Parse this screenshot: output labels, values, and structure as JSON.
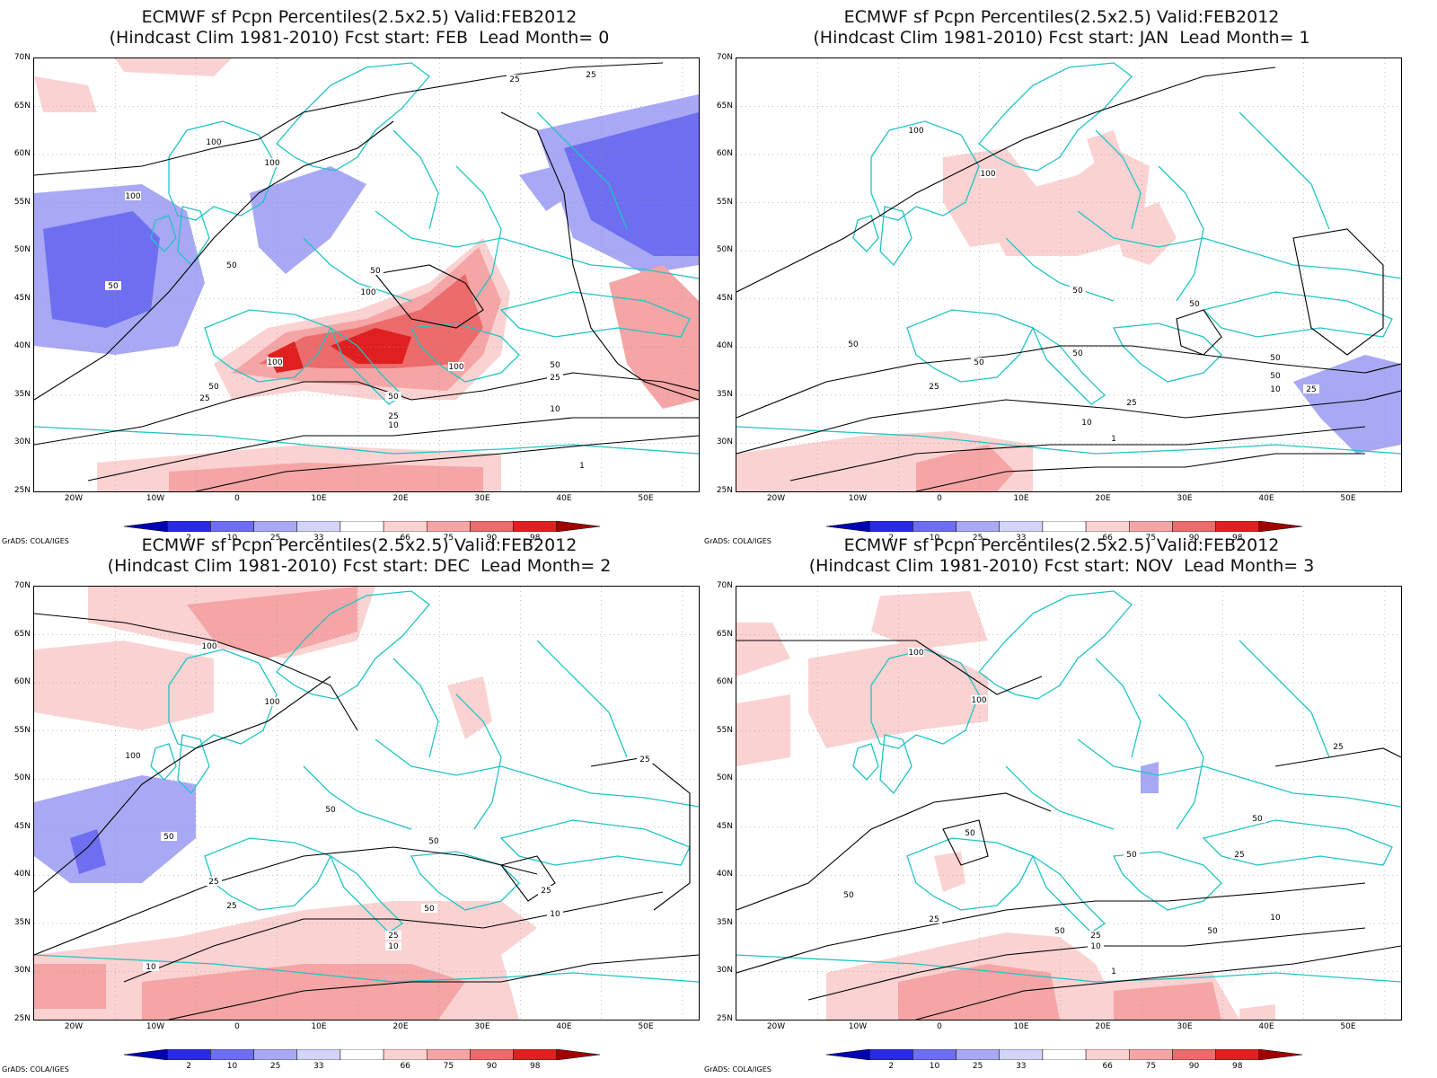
{
  "panels": [
    {
      "title1": "ECMWF sf Pcpn Percentiles(2.5x2.5) Valid:FEB2012",
      "title2": "(Hindcast Clim 1981-2010) Fcst start: FEB  Lead Month= 0",
      "contour_labels": [
        "25",
        "25",
        "100",
        "100",
        "100",
        "50",
        "50",
        "50",
        "100",
        "100",
        "100",
        "50",
        "25",
        "50",
        "25",
        "10",
        "50",
        "25",
        "10",
        "1"
      ]
    },
    {
      "title1": "ECMWF sf Pcpn Percentiles(2.5x2.5) Valid:FEB2012",
      "title2": "(Hindcast Clim 1981-2010) Fcst start: JAN  Lead Month= 1",
      "contour_labels": [
        "100",
        "100",
        "50",
        "50",
        "50",
        "50",
        "50",
        "50",
        "25",
        "25",
        "10",
        "1",
        "50",
        "10",
        "25"
      ]
    },
    {
      "title1": "ECMWF sf Pcpn Percentiles(2.5x2.5) Valid:FEB2012",
      "title2": "(Hindcast Clim 1981-2010) Fcst start: DEC  Lead Month= 2",
      "contour_labels": [
        "100",
        "100",
        "100",
        "25",
        "50",
        "50",
        "50",
        "25",
        "25",
        "50",
        "25",
        "10",
        "25",
        "10",
        "10"
      ]
    },
    {
      "title1": "ECMWF sf Pcpn Percentiles(2.5x2.5) Valid:FEB2012",
      "title2": "(Hindcast Clim 1981-2010) Fcst start: NOV  Lead Month= 3",
      "contour_labels": [
        "100",
        "100",
        "25",
        "50",
        "50",
        "50",
        "50",
        "25",
        "50",
        "25",
        "25",
        "10",
        "10",
        "1",
        "50"
      ]
    }
  ],
  "lat_labels": [
    "70N",
    "65N",
    "60N",
    "55N",
    "50N",
    "45N",
    "40N",
    "35N",
    "30N",
    "25N"
  ],
  "lon_labels": [
    "20W",
    "10W",
    "0",
    "10E",
    "20E",
    "30E",
    "40E",
    "50E"
  ],
  "colorbar": {
    "labels": [
      "2",
      "10",
      "25",
      "33",
      "66",
      "75",
      "90",
      "98"
    ],
    "colors": [
      "#0000b4",
      "#2a2ae6",
      "#6e6ef0",
      "#a8a8f5",
      "#d4d4fa",
      "#ffffff",
      "#fbd2d2",
      "#f5a5a5",
      "#ec6b6b",
      "#e02020",
      "#a00000"
    ]
  },
  "credit": "GrADS: COLA/IGES",
  "colors": {
    "coast": "#22c4c4",
    "contour": "#000000",
    "frame": "#000000"
  }
}
